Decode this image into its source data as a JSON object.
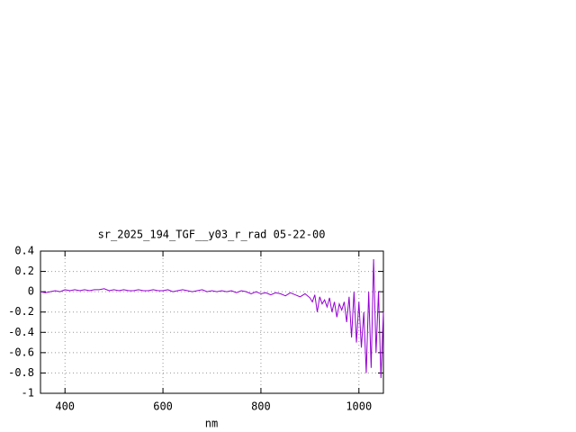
{
  "chart_data": {
    "type": "line",
    "title": "sr_2025_194_TGF__y03_r_rad 05-22-00",
    "x_label": "nm",
    "x": [
      350,
      360,
      370,
      380,
      390,
      400,
      410,
      420,
      430,
      440,
      450,
      460,
      470,
      480,
      490,
      500,
      510,
      520,
      530,
      540,
      550,
      560,
      570,
      580,
      590,
      600,
      610,
      620,
      630,
      640,
      650,
      660,
      670,
      680,
      690,
      700,
      710,
      720,
      730,
      740,
      750,
      760,
      770,
      780,
      790,
      800,
      810,
      820,
      830,
      840,
      850,
      860,
      870,
      880,
      890,
      900,
      905,
      910,
      915,
      920,
      925,
      930,
      935,
      940,
      945,
      950,
      955,
      960,
      965,
      970,
      975,
      980,
      985,
      990,
      995,
      1000,
      1005,
      1010,
      1015,
      1020,
      1025,
      1030,
      1035,
      1040,
      1045,
      1050
    ],
    "series": [
      {
        "color": "#9400d3",
        "values": [
          0.0,
          -0.01,
          0.0,
          0.01,
          0.0,
          0.02,
          0.01,
          0.02,
          0.01,
          0.02,
          0.01,
          0.02,
          0.02,
          0.03,
          0.01,
          0.02,
          0.01,
          0.02,
          0.01,
          0.01,
          0.02,
          0.01,
          0.01,
          0.02,
          0.01,
          0.01,
          0.02,
          0.0,
          0.01,
          0.02,
          0.01,
          0.0,
          0.01,
          0.02,
          0.0,
          0.01,
          0.0,
          0.01,
          0.0,
          0.01,
          -0.01,
          0.01,
          0.0,
          -0.02,
          0.0,
          -0.02,
          -0.01,
          -0.03,
          -0.01,
          -0.02,
          -0.04,
          -0.01,
          -0.03,
          -0.05,
          -0.02,
          -0.06,
          -0.1,
          -0.03,
          -0.2,
          -0.05,
          -0.12,
          -0.08,
          -0.15,
          -0.06,
          -0.2,
          -0.1,
          -0.25,
          -0.12,
          -0.18,
          -0.1,
          -0.3,
          -0.05,
          -0.45,
          0.0,
          -0.5,
          -0.1,
          -0.55,
          -0.2,
          -0.8,
          0.0,
          -0.75,
          0.32,
          -0.6,
          0.0,
          -0.85,
          -0.2
        ]
      }
    ],
    "xlim": [
      350,
      1050
    ],
    "xticks": [
      400,
      600,
      800,
      1000
    ],
    "ylim": [
      -1,
      0.4
    ],
    "yticks": [
      0.4,
      0.2,
      0,
      -0.2,
      -0.4,
      -0.6,
      -0.8,
      -1
    ],
    "grid": true
  }
}
